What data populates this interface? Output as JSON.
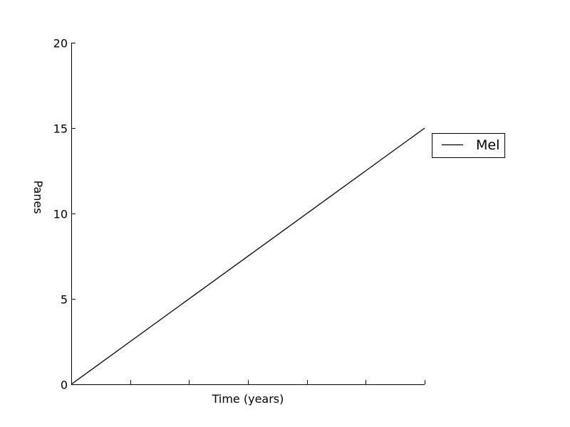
{
  "chart_data": {
    "type": "line",
    "title": "",
    "xlabel": "Time (years)",
    "ylabel": "Panes",
    "xlim": [
      0,
      6
    ],
    "ylim": [
      0,
      20
    ],
    "x_ticks": [
      0,
      1,
      2,
      3,
      4,
      5,
      6
    ],
    "y_ticks": [
      0,
      5,
      10,
      15,
      20
    ],
    "y_tick_labels": [
      "0",
      "5",
      "10",
      "15",
      "20"
    ],
    "x_tick_labels_shown": false,
    "grid": false,
    "legend_position": "right, outside plot",
    "series": [
      {
        "name": "Mel",
        "color": "#000000",
        "x": [
          0,
          6
        ],
        "y": [
          0,
          15
        ]
      }
    ]
  }
}
